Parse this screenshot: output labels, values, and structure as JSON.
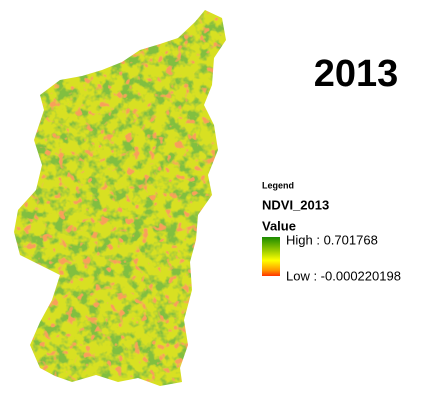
{
  "title": "2013",
  "legend": {
    "heading": "Legend",
    "layer": "NDVI_2013",
    "field": "Value",
    "high": "High : 0.701768",
    "low": "Low : -0.000220198"
  }
}
